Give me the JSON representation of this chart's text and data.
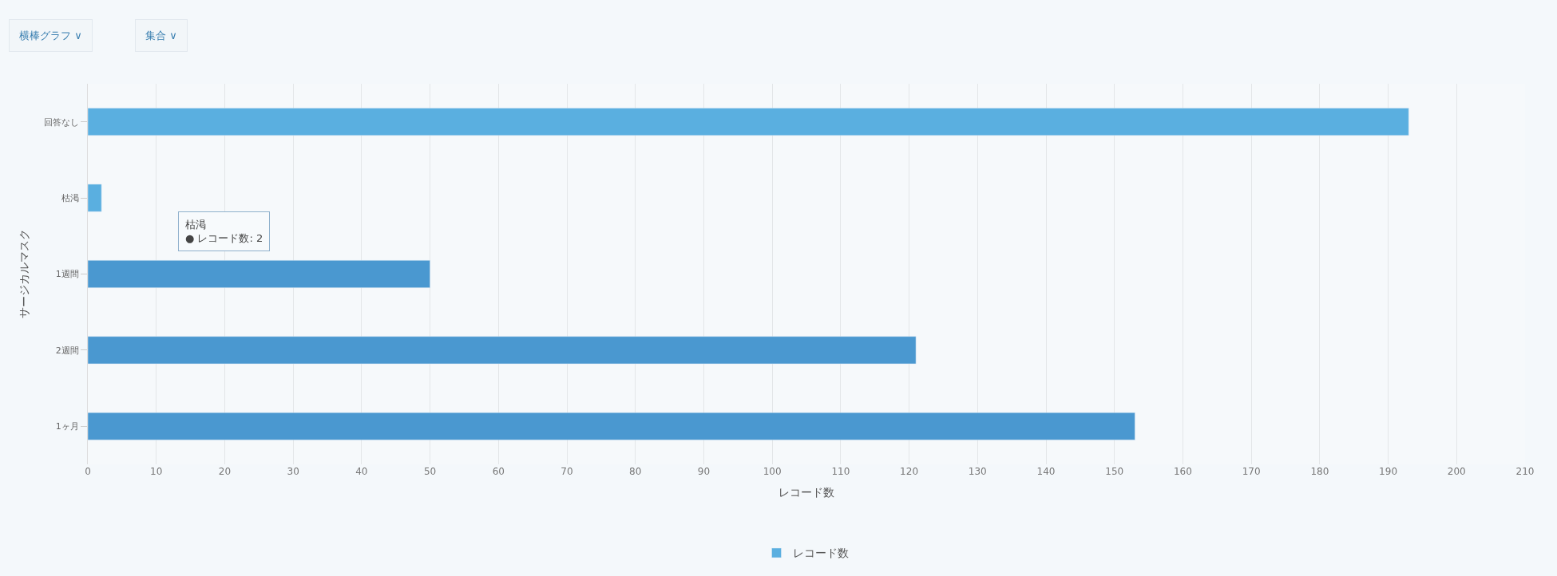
{
  "chart_data": {
    "type": "bar",
    "orientation": "horizontal",
    "xlabel": "レコード数",
    "ylabel": "サージカルマスク",
    "categories": [
      "回答なし",
      "枯渇",
      "1週間",
      "2週間",
      "1ヶ月"
    ],
    "series": [
      {
        "name": "レコード数",
        "colors": [
          "#5aafe0",
          "#5aafe0",
          "#4a98d0",
          "#4a98d0",
          "#4a98d0"
        ],
        "values": [
          193,
          2,
          50,
          121,
          153
        ]
      }
    ],
    "xlim": [
      0,
      210
    ],
    "xticks": [
      0,
      10,
      20,
      30,
      40,
      50,
      60,
      70,
      80,
      90,
      100,
      110,
      120,
      130,
      140,
      150,
      160,
      170,
      180,
      190,
      200,
      210
    ],
    "grid": "x",
    "legend": "bottom",
    "annotations": [
      "横棒グラフ ∨",
      "集合 ∨",
      "枯渇\n● レコード数: 2"
    ]
  }
}
